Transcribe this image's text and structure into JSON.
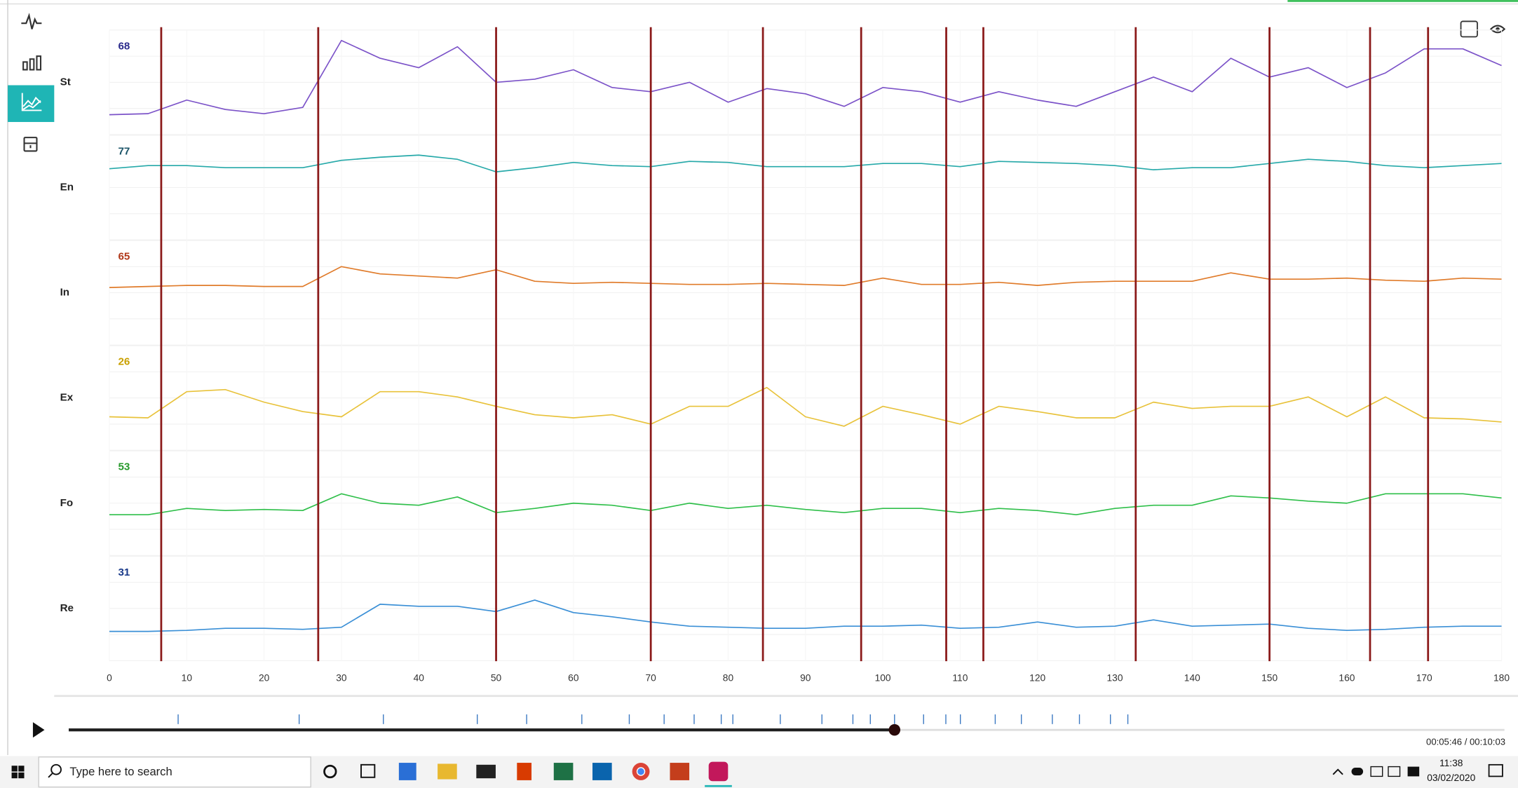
{
  "chart_data": {
    "type": "line",
    "x": [
      0,
      5,
      10,
      15,
      20,
      25,
      30,
      35,
      40,
      45,
      50,
      55,
      60,
      65,
      70,
      75,
      80,
      85,
      90,
      95,
      100,
      105,
      110,
      115,
      120,
      125,
      130,
      135,
      140,
      145,
      150,
      155,
      160,
      165,
      170,
      175,
      180
    ],
    "xlim": [
      0,
      180
    ],
    "xticks": [
      0,
      10,
      20,
      30,
      40,
      50,
      60,
      70,
      80,
      90,
      100,
      110,
      120,
      130,
      140,
      150,
      160,
      170,
      180
    ],
    "ylim": [
      0,
      100
    ],
    "series": [
      {
        "name": "St",
        "color": "#7b52c8",
        "readout": 68,
        "readout_color": "#2b2b8c",
        "values": [
          19,
          20,
          33,
          24,
          20,
          26,
          90,
          73,
          64,
          84,
          50,
          53,
          62,
          45,
          41,
          50,
          31,
          44,
          39,
          27,
          45,
          41,
          31,
          41,
          33,
          27,
          41,
          55,
          41,
          73,
          55,
          64,
          45,
          59,
          82,
          82,
          66
        ]
      },
      {
        "name": "En",
        "color": "#26a9a9",
        "readout": 77,
        "readout_color": "#1b5468",
        "values": [
          68,
          71,
          71,
          69,
          69,
          69,
          76,
          79,
          81,
          77,
          65,
          69,
          74,
          71,
          70,
          75,
          74,
          70,
          70,
          70,
          73,
          73,
          70,
          75,
          74,
          73,
          71,
          67,
          69,
          69,
          73,
          77,
          75,
          71,
          69,
          71,
          73
        ]
      },
      {
        "name": "In",
        "color": "#e07b2a",
        "readout": 65,
        "readout_color": "#b0381a",
        "values": [
          55,
          56,
          57,
          57,
          56,
          56,
          75,
          68,
          66,
          64,
          72,
          61,
          59,
          60,
          59,
          58,
          58,
          59,
          58,
          57,
          64,
          58,
          58,
          60,
          57,
          60,
          61,
          61,
          61,
          69,
          63,
          63,
          64,
          62,
          61,
          64,
          63
        ]
      },
      {
        "name": "Ex",
        "color": "#e8c23a",
        "readout": 26,
        "readout_color": "#c9a000",
        "values": [
          32,
          31,
          56,
          58,
          46,
          37,
          32,
          56,
          56,
          51,
          42,
          34,
          31,
          34,
          25,
          42,
          42,
          60,
          32,
          23,
          42,
          34,
          25,
          42,
          37,
          31,
          31,
          46,
          40,
          42,
          42,
          51,
          32,
          51,
          31,
          30,
          27
        ]
      },
      {
        "name": "Fo",
        "color": "#2fbf4a",
        "readout": 53,
        "readout_color": "#27992b",
        "values": [
          39,
          39,
          45,
          43,
          44,
          43,
          59,
          50,
          48,
          56,
          41,
          45,
          50,
          48,
          43,
          50,
          45,
          48,
          44,
          41,
          45,
          45,
          41,
          45,
          43,
          39,
          45,
          48,
          48,
          57,
          55,
          52,
          50,
          59,
          59,
          59,
          55
        ]
      },
      {
        "name": "Re",
        "color": "#3a8fd6",
        "readout": 31,
        "readout_color": "#1a3a8a",
        "values": [
          28,
          28,
          29,
          31,
          31,
          30,
          32,
          54,
          52,
          52,
          47,
          58,
          46,
          42,
          37,
          33,
          32,
          31,
          31,
          33,
          33,
          34,
          31,
          32,
          37,
          32,
          33,
          39,
          33,
          34,
          35,
          31,
          29,
          30,
          32,
          33,
          33
        ]
      }
    ],
    "event_lines": [
      6.7,
      27,
      50,
      70,
      84.5,
      97.2,
      108.2,
      113,
      132.7,
      150,
      163,
      170.5
    ],
    "event_line_color": "#8b1a1a"
  },
  "player": {
    "time": "00:05:46 / 00:10:03"
  },
  "taskbar": {
    "search_placeholder": "Type here to search",
    "clock": "11:38",
    "date": "03/02/2020"
  }
}
